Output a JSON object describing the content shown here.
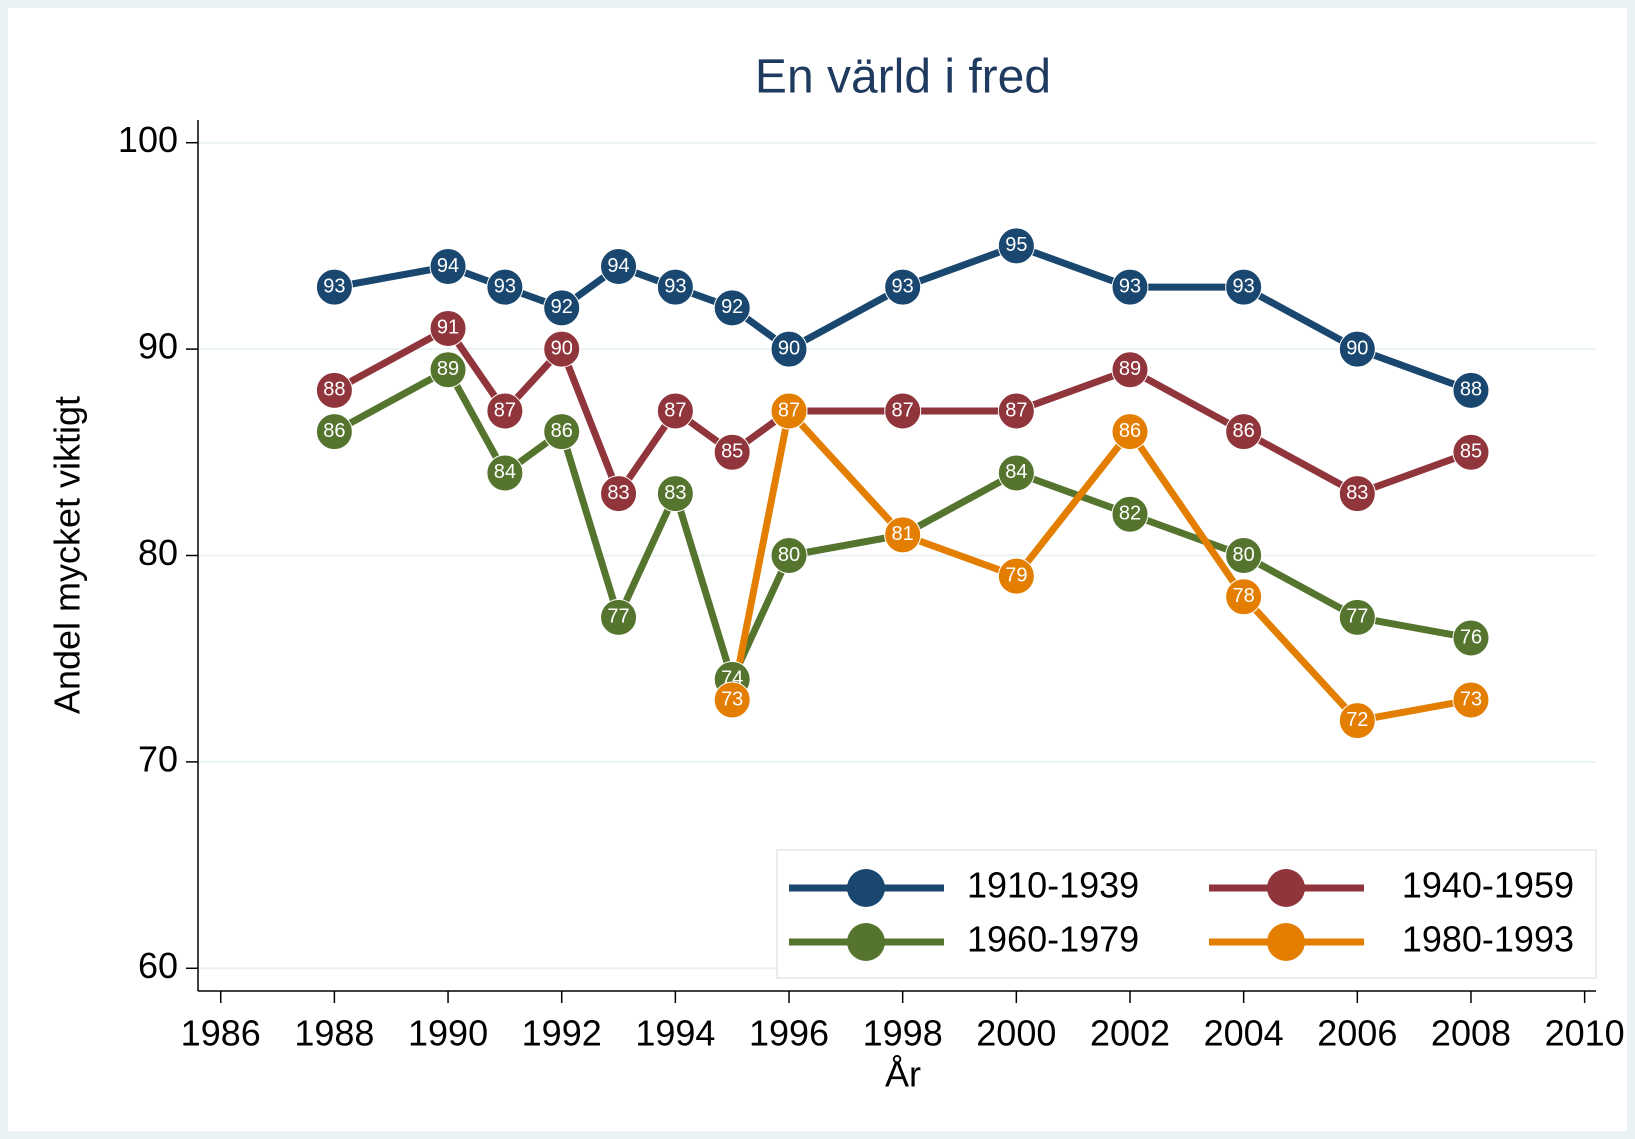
{
  "chart_data": {
    "type": "line",
    "title": "En värld i fred",
    "xlabel": "År",
    "ylabel": "Andel mycket viktigt",
    "x": [
      1988,
      1990,
      1991,
      1992,
      1993,
      1994,
      1995,
      1996,
      1998,
      2000,
      2002,
      2004,
      2006,
      2008
    ],
    "series": [
      {
        "name": "1910-1939",
        "color": "#1a476f",
        "values": [
          93,
          94,
          93,
          92,
          94,
          93,
          92,
          90,
          93,
          95,
          93,
          93,
          90,
          88
        ]
      },
      {
        "name": "1940-1959",
        "color": "#90353b",
        "values": [
          88,
          91,
          87,
          90,
          83,
          87,
          85,
          87,
          87,
          87,
          89,
          86,
          83,
          85
        ]
      },
      {
        "name": "1960-1979",
        "color": "#55752f",
        "values": [
          86,
          89,
          84,
          86,
          77,
          83,
          74,
          80,
          81,
          84,
          82,
          80,
          77,
          76
        ]
      },
      {
        "name": "1980-1993",
        "color": "#e37e00",
        "values": [
          null,
          null,
          null,
          null,
          null,
          null,
          73,
          87,
          81,
          79,
          86,
          78,
          72,
          73
        ]
      }
    ],
    "xlim": [
      1985.6,
      2010.2
    ],
    "xticks": [
      1986,
      1988,
      1990,
      1992,
      1994,
      1996,
      1998,
      2000,
      2002,
      2004,
      2006,
      2008,
      2010
    ],
    "ylim": [
      58.9,
      101.1
    ],
    "yticks": [
      60,
      70,
      80,
      90,
      100
    ],
    "grid": true,
    "legend": "lower right"
  }
}
